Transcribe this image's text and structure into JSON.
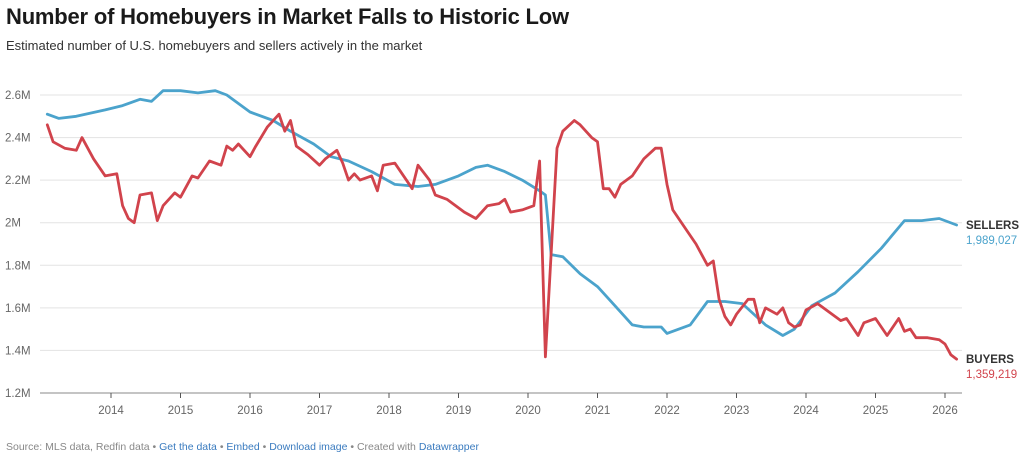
{
  "header": {
    "title": "Number of Homebuyers in Market Falls to Historic Low",
    "subtitle": "Estimated number of U.S. homebuyers and sellers actively in the market"
  },
  "footer": {
    "source": "Source: MLS data, Redfin data",
    "sep": " • ",
    "get_data": "Get the data",
    "embed": "Embed",
    "download": "Download image",
    "created_with": "Created with ",
    "datawrapper": "Datawrapper"
  },
  "chart_data": {
    "type": "line",
    "title": "Number of Homebuyers in Market Falls to Historic Low",
    "subtitle": "Estimated number of U.S. homebuyers and sellers actively in the market",
    "ylim": [
      1.2,
      2.6
    ],
    "y_unit": "millions",
    "y_ticks": [
      "2.6M",
      "2.4M",
      "2.2M",
      "2M",
      "1.8M",
      "1.6M",
      "1.4M",
      "1.2M"
    ],
    "y_tick_values": [
      2.6,
      2.4,
      2.2,
      2.0,
      1.8,
      1.6,
      1.4,
      1.2
    ],
    "x_ticks": [
      "2014",
      "2015",
      "2016",
      "2017",
      "2018",
      "2019",
      "2020",
      "2021",
      "2022",
      "2023",
      "2024",
      "2025",
      "2026"
    ],
    "grid": true,
    "legend": "direct labels at right end",
    "series": [
      {
        "name": "SELLERS",
        "end_label": "1,989,027",
        "color": "#4ba3cc",
        "points": [
          [
            "2013-02",
            2.51
          ],
          [
            "2013-04",
            2.49
          ],
          [
            "2013-07",
            2.5
          ],
          [
            "2013-12",
            2.53
          ],
          [
            "2014-03",
            2.55
          ],
          [
            "2014-06",
            2.58
          ],
          [
            "2014-08",
            2.57
          ],
          [
            "2014-10",
            2.62
          ],
          [
            "2015-01",
            2.62
          ],
          [
            "2015-04",
            2.61
          ],
          [
            "2015-07",
            2.62
          ],
          [
            "2015-09",
            2.6
          ],
          [
            "2016-01",
            2.52
          ],
          [
            "2016-05",
            2.48
          ],
          [
            "2016-08",
            2.43
          ],
          [
            "2016-12",
            2.37
          ],
          [
            "2017-03",
            2.31
          ],
          [
            "2017-06",
            2.29
          ],
          [
            "2017-10",
            2.24
          ],
          [
            "2018-02",
            2.18
          ],
          [
            "2018-06",
            2.17
          ],
          [
            "2018-09",
            2.18
          ],
          [
            "2019-01",
            2.22
          ],
          [
            "2019-04",
            2.26
          ],
          [
            "2019-06",
            2.27
          ],
          [
            "2019-09",
            2.24
          ],
          [
            "2019-12",
            2.2
          ],
          [
            "2020-03",
            2.15
          ],
          [
            "2020-04",
            2.13
          ],
          [
            "2020-05",
            1.85
          ],
          [
            "2020-07",
            1.84
          ],
          [
            "2020-10",
            1.76
          ],
          [
            "2021-01",
            1.7
          ],
          [
            "2021-04",
            1.61
          ],
          [
            "2021-07",
            1.52
          ],
          [
            "2021-09",
            1.51
          ],
          [
            "2021-12",
            1.51
          ],
          [
            "2022-01",
            1.48
          ],
          [
            "2022-05",
            1.52
          ],
          [
            "2022-08",
            1.63
          ],
          [
            "2022-11",
            1.63
          ],
          [
            "2023-02",
            1.62
          ],
          [
            "2023-06",
            1.52
          ],
          [
            "2023-09",
            1.47
          ],
          [
            "2023-11",
            1.5
          ],
          [
            "2024-02",
            1.61
          ],
          [
            "2024-06",
            1.67
          ],
          [
            "2024-10",
            1.77
          ],
          [
            "2025-02",
            1.88
          ],
          [
            "2025-06",
            2.01
          ],
          [
            "2025-09",
            2.01
          ],
          [
            "2025-12",
            2.02
          ],
          [
            "2026-03",
            1.989027
          ]
        ]
      },
      {
        "name": "BUYERS",
        "end_label": "1,359,219",
        "color": "#d1434c",
        "points": [
          [
            "2013-02",
            2.46
          ],
          [
            "2013-03",
            2.38
          ],
          [
            "2013-05",
            2.35
          ],
          [
            "2013-07",
            2.34
          ],
          [
            "2013-08",
            2.4
          ],
          [
            "2013-10",
            2.3
          ],
          [
            "2013-12",
            2.22
          ],
          [
            "2014-02",
            2.23
          ],
          [
            "2014-03",
            2.08
          ],
          [
            "2014-04",
            2.02
          ],
          [
            "2014-05",
            2.0
          ],
          [
            "2014-06",
            2.13
          ],
          [
            "2014-08",
            2.14
          ],
          [
            "2014-09",
            2.01
          ],
          [
            "2014-10",
            2.08
          ],
          [
            "2014-12",
            2.14
          ],
          [
            "2015-01",
            2.12
          ],
          [
            "2015-03",
            2.22
          ],
          [
            "2015-04",
            2.21
          ],
          [
            "2015-06",
            2.29
          ],
          [
            "2015-08",
            2.27
          ],
          [
            "2015-09",
            2.36
          ],
          [
            "2015-10",
            2.34
          ],
          [
            "2015-11",
            2.37
          ],
          [
            "2016-01",
            2.31
          ],
          [
            "2016-02",
            2.36
          ],
          [
            "2016-04",
            2.45
          ],
          [
            "2016-06",
            2.51
          ],
          [
            "2016-07",
            2.43
          ],
          [
            "2016-08",
            2.48
          ],
          [
            "2016-09",
            2.36
          ],
          [
            "2016-11",
            2.32
          ],
          [
            "2017-01",
            2.27
          ],
          [
            "2017-02",
            2.3
          ],
          [
            "2017-04",
            2.34
          ],
          [
            "2017-05",
            2.28
          ],
          [
            "2017-06",
            2.2
          ],
          [
            "2017-07",
            2.23
          ],
          [
            "2017-08",
            2.2
          ],
          [
            "2017-10",
            2.22
          ],
          [
            "2017-11",
            2.15
          ],
          [
            "2017-12",
            2.27
          ],
          [
            "2018-02",
            2.28
          ],
          [
            "2018-04",
            2.2
          ],
          [
            "2018-05",
            2.16
          ],
          [
            "2018-06",
            2.27
          ],
          [
            "2018-08",
            2.2
          ],
          [
            "2018-09",
            2.13
          ],
          [
            "2018-11",
            2.11
          ],
          [
            "2019-02",
            2.05
          ],
          [
            "2019-04",
            2.02
          ],
          [
            "2019-06",
            2.08
          ],
          [
            "2019-08",
            2.09
          ],
          [
            "2019-09",
            2.11
          ],
          [
            "2019-10",
            2.05
          ],
          [
            "2019-12",
            2.06
          ],
          [
            "2020-02",
            2.08
          ],
          [
            "2020-03",
            2.29
          ],
          [
            "2020-04",
            1.37
          ],
          [
            "2020-06",
            2.35
          ],
          [
            "2020-07",
            2.43
          ],
          [
            "2020-09",
            2.48
          ],
          [
            "2020-10",
            2.46
          ],
          [
            "2020-12",
            2.4
          ],
          [
            "2021-01",
            2.38
          ],
          [
            "2021-02",
            2.16
          ],
          [
            "2021-03",
            2.16
          ],
          [
            "2021-04",
            2.12
          ],
          [
            "2021-05",
            2.18
          ],
          [
            "2021-07",
            2.22
          ],
          [
            "2021-09",
            2.3
          ],
          [
            "2021-11",
            2.35
          ],
          [
            "2021-12",
            2.35
          ],
          [
            "2022-01",
            2.18
          ],
          [
            "2022-02",
            2.06
          ],
          [
            "2022-04",
            1.98
          ],
          [
            "2022-06",
            1.9
          ],
          [
            "2022-08",
            1.8
          ],
          [
            "2022-09",
            1.82
          ],
          [
            "2022-10",
            1.64
          ],
          [
            "2022-11",
            1.56
          ],
          [
            "2022-12",
            1.52
          ],
          [
            "2023-01",
            1.57
          ],
          [
            "2023-03",
            1.64
          ],
          [
            "2023-04",
            1.64
          ],
          [
            "2023-05",
            1.53
          ],
          [
            "2023-06",
            1.6
          ],
          [
            "2023-08",
            1.57
          ],
          [
            "2023-09",
            1.6
          ],
          [
            "2023-10",
            1.53
          ],
          [
            "2023-11",
            1.51
          ],
          [
            "2023-12",
            1.52
          ],
          [
            "2024-01",
            1.59
          ],
          [
            "2024-03",
            1.62
          ],
          [
            "2024-05",
            1.58
          ],
          [
            "2024-07",
            1.54
          ],
          [
            "2024-08",
            1.55
          ],
          [
            "2024-10",
            1.47
          ],
          [
            "2024-11",
            1.53
          ],
          [
            "2025-01",
            1.55
          ],
          [
            "2025-03",
            1.47
          ],
          [
            "2025-05",
            1.55
          ],
          [
            "2025-06",
            1.49
          ],
          [
            "2025-07",
            1.5
          ],
          [
            "2025-08",
            1.46
          ],
          [
            "2025-10",
            1.46
          ],
          [
            "2025-12",
            1.45
          ],
          [
            "2026-01",
            1.43
          ],
          [
            "2026-02",
            1.38
          ],
          [
            "2026-03",
            1.359219
          ]
        ]
      }
    ]
  }
}
